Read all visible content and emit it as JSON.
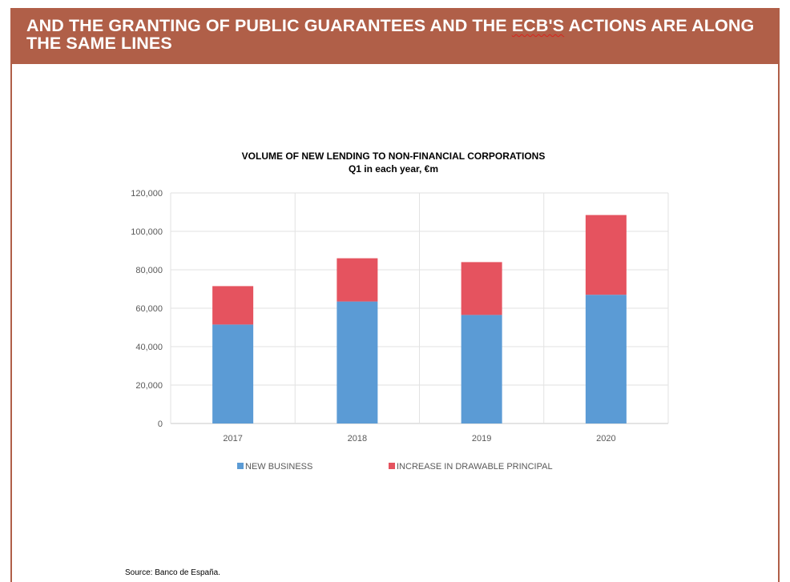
{
  "header": {
    "title_part1": "AND THE GRANTING OF PUBLIC GUARANTEES AND THE ",
    "title_ecb": "ECB'S",
    "title_part2": " ACTIONS ARE ALONG THE SAME LINES"
  },
  "chart_data": {
    "type": "bar",
    "stacked": true,
    "title": "VOLUME OF NEW LENDING TO NON-FINANCIAL CORPORATIONS",
    "subtitle": "Q1 in each year, €m",
    "categories": [
      "2017",
      "2018",
      "2019",
      "2020"
    ],
    "series": [
      {
        "name": "NEW BUSINESS",
        "color": "#5b9bd5",
        "values": [
          51500,
          63500,
          56500,
          67000
        ]
      },
      {
        "name": "INCREASE IN DRAWABLE PRINCIPAL",
        "color": "#e5535f",
        "values": [
          20000,
          22500,
          27500,
          41500
        ]
      }
    ],
    "ylim": [
      0,
      120000
    ],
    "yticks": [
      "0",
      "20,000",
      "40,000",
      "60,000",
      "80,000",
      "100,000",
      "120,000"
    ],
    "ytick_values": [
      0,
      20000,
      40000,
      60000,
      80000,
      100000,
      120000
    ],
    "xlabel": "",
    "ylabel": "",
    "grid": true,
    "legend_position": "bottom"
  },
  "source": "Source: Banco de España."
}
